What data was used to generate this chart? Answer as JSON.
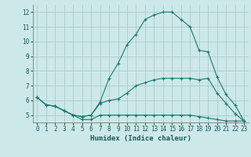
{
  "xlabel": "Humidex (Indice chaleur)",
  "xlim": [
    -0.5,
    23.5
  ],
  "ylim": [
    4.5,
    12.5
  ],
  "yticks": [
    5,
    6,
    7,
    8,
    9,
    10,
    11,
    12
  ],
  "xticks": [
    0,
    1,
    2,
    3,
    4,
    5,
    6,
    7,
    8,
    9,
    10,
    11,
    12,
    13,
    14,
    15,
    16,
    17,
    18,
    19,
    20,
    21,
    22,
    23
  ],
  "bg_color": "#cce8e8",
  "grid_color": "#aacccc",
  "line_color": "#1a7a6e",
  "line1_x": [
    0,
    1,
    2,
    3,
    4,
    5,
    6,
    7,
    8,
    9,
    10,
    11,
    12,
    13,
    14,
    15,
    16,
    17,
    18,
    19,
    20,
    21,
    22,
    23
  ],
  "line1_y": [
    6.2,
    5.7,
    5.6,
    5.3,
    5.0,
    4.7,
    4.7,
    5.0,
    5.0,
    5.0,
    5.0,
    5.0,
    5.0,
    5.0,
    5.0,
    5.0,
    5.0,
    5.0,
    4.9,
    4.8,
    4.7,
    4.6,
    4.6,
    4.6
  ],
  "line2_x": [
    0,
    1,
    2,
    3,
    4,
    5,
    6,
    7,
    8,
    9,
    10,
    11,
    12,
    13,
    14,
    15,
    16,
    17,
    18,
    19,
    20,
    21,
    22,
    23
  ],
  "line2_y": [
    6.2,
    5.7,
    5.6,
    5.3,
    5.0,
    4.9,
    5.0,
    5.8,
    6.0,
    6.1,
    6.5,
    7.0,
    7.2,
    7.4,
    7.5,
    7.5,
    7.5,
    7.5,
    7.4,
    7.5,
    6.5,
    5.8,
    5.1,
    4.6
  ],
  "line3_x": [
    0,
    1,
    2,
    3,
    4,
    5,
    6,
    7,
    8,
    9,
    10,
    11,
    12,
    13,
    14,
    15,
    16,
    17,
    18,
    19,
    20,
    21,
    22,
    23
  ],
  "line3_y": [
    6.2,
    5.7,
    5.6,
    5.3,
    5.0,
    4.9,
    5.0,
    5.9,
    7.5,
    8.5,
    9.8,
    10.5,
    11.5,
    11.8,
    12.0,
    12.0,
    11.5,
    11.0,
    9.4,
    9.3,
    7.6,
    6.4,
    5.7,
    4.6
  ]
}
